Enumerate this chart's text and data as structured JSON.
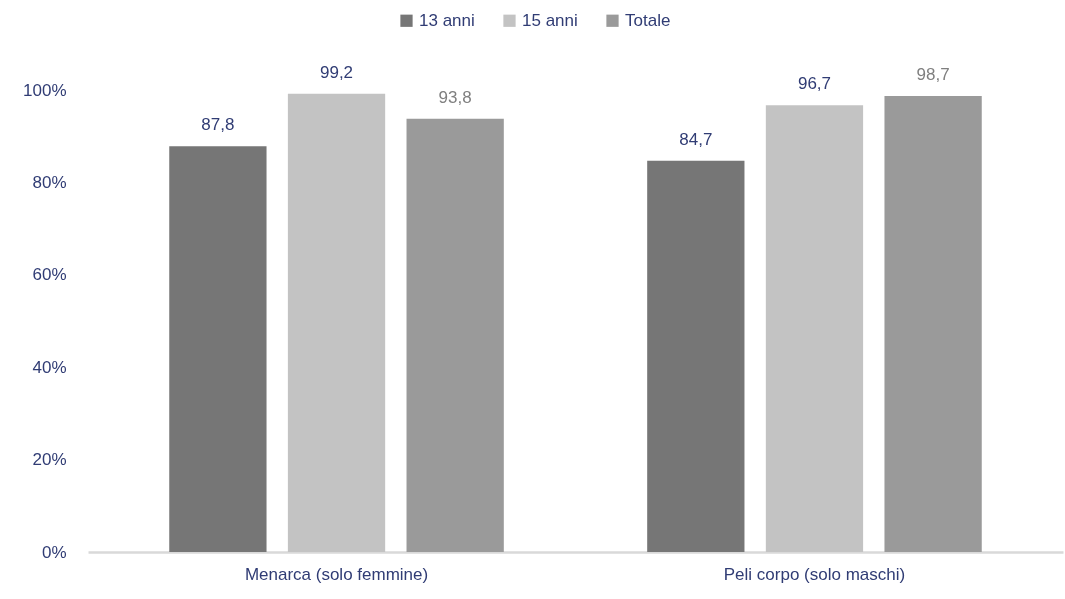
{
  "chart_data": {
    "type": "bar",
    "categories": [
      "Menarca (solo femmine)",
      "Peli corpo (solo maschi)"
    ],
    "series": [
      {
        "name": "13 anni",
        "color": "#767676",
        "values": [
          87.8,
          84.7
        ],
        "value_labels": [
          "87,8",
          "84,7"
        ]
      },
      {
        "name": "15 anni",
        "color": "#c3c3c3",
        "values": [
          99.2,
          96.7
        ],
        "value_labels": [
          "99,2",
          "96,7"
        ]
      },
      {
        "name": "Totale",
        "color": "#9a9a9a",
        "values": [
          93.8,
          98.7
        ],
        "value_labels": [
          "93,8",
          "98,7"
        ]
      }
    ],
    "ylim": [
      0,
      100
    ],
    "yticks": [
      {
        "value": 0,
        "label": "0%"
      },
      {
        "value": 20,
        "label": "20%"
      },
      {
        "value": 40,
        "label": "40%"
      },
      {
        "value": 60,
        "label": "60%"
      },
      {
        "value": 80,
        "label": "80%"
      },
      {
        "value": 100,
        "label": "100%"
      }
    ],
    "grid": false,
    "legend": "top"
  }
}
